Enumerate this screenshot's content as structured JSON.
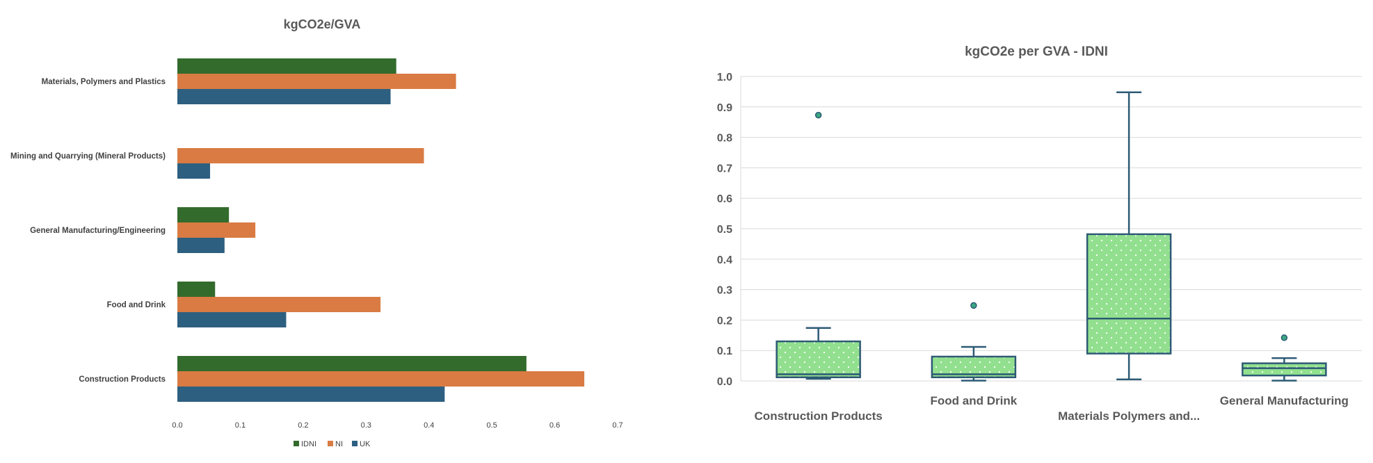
{
  "chart_data": [
    {
      "type": "bar",
      "orientation": "horizontal",
      "title": "kgCO2e/GVA",
      "categories": [
        "Materials, Polymers and Plastics",
        "Mining and Quarrying (Mineral Products)",
        "General Manufacturing/Engineering",
        "Food and Drink",
        "Construction Products"
      ],
      "series": [
        {
          "name": "IDNI",
          "color": "#336b2c",
          "values": [
            0.348,
            null,
            0.082,
            0.06,
            0.555
          ]
        },
        {
          "name": "NI",
          "color": "#d97b43",
          "values": [
            0.443,
            0.392,
            0.124,
            0.323,
            0.647
          ]
        },
        {
          "name": "UK",
          "color": "#2d5f80",
          "values": [
            0.339,
            0.052,
            0.075,
            0.173,
            0.425
          ]
        }
      ],
      "xlim": [
        0,
        0.7
      ],
      "xticks": [
        "0.0",
        "0.1",
        "0.2",
        "0.3",
        "0.4",
        "0.5",
        "0.6",
        "0.7"
      ],
      "legend": "bottom",
      "grid": false
    },
    {
      "type": "box",
      "title": "kgCO2e per GVA - IDNI",
      "categories": [
        "Construction Products",
        "Food and Drink",
        "Materials Polymers and...",
        "General Manufacturing"
      ],
      "boxes": [
        {
          "min": 0.007,
          "q1": 0.012,
          "median": 0.022,
          "q3": 0.13,
          "max": 0.174,
          "outliers": [
            0.873
          ]
        },
        {
          "min": 0.001,
          "q1": 0.012,
          "median": 0.022,
          "q3": 0.08,
          "max": 0.112,
          "outliers": [
            0.248
          ]
        },
        {
          "min": 0.005,
          "q1": 0.09,
          "median": 0.205,
          "q3": 0.482,
          "max": 0.948,
          "outliers": []
        },
        {
          "min": 0.001,
          "q1": 0.018,
          "median": 0.042,
          "q3": 0.058,
          "max": 0.075,
          "outliers": [
            0.142
          ]
        }
      ],
      "ylim": [
        0,
        1.0
      ],
      "yticks": [
        "0.0",
        "0.1",
        "0.2",
        "0.3",
        "0.4",
        "0.5",
        "0.6",
        "0.7",
        "0.8",
        "0.9",
        "1.0"
      ],
      "box_fill": "#92e08f",
      "box_stroke": "#2d5a75",
      "outlier_fill": "#3aa882",
      "grid": true
    }
  ]
}
